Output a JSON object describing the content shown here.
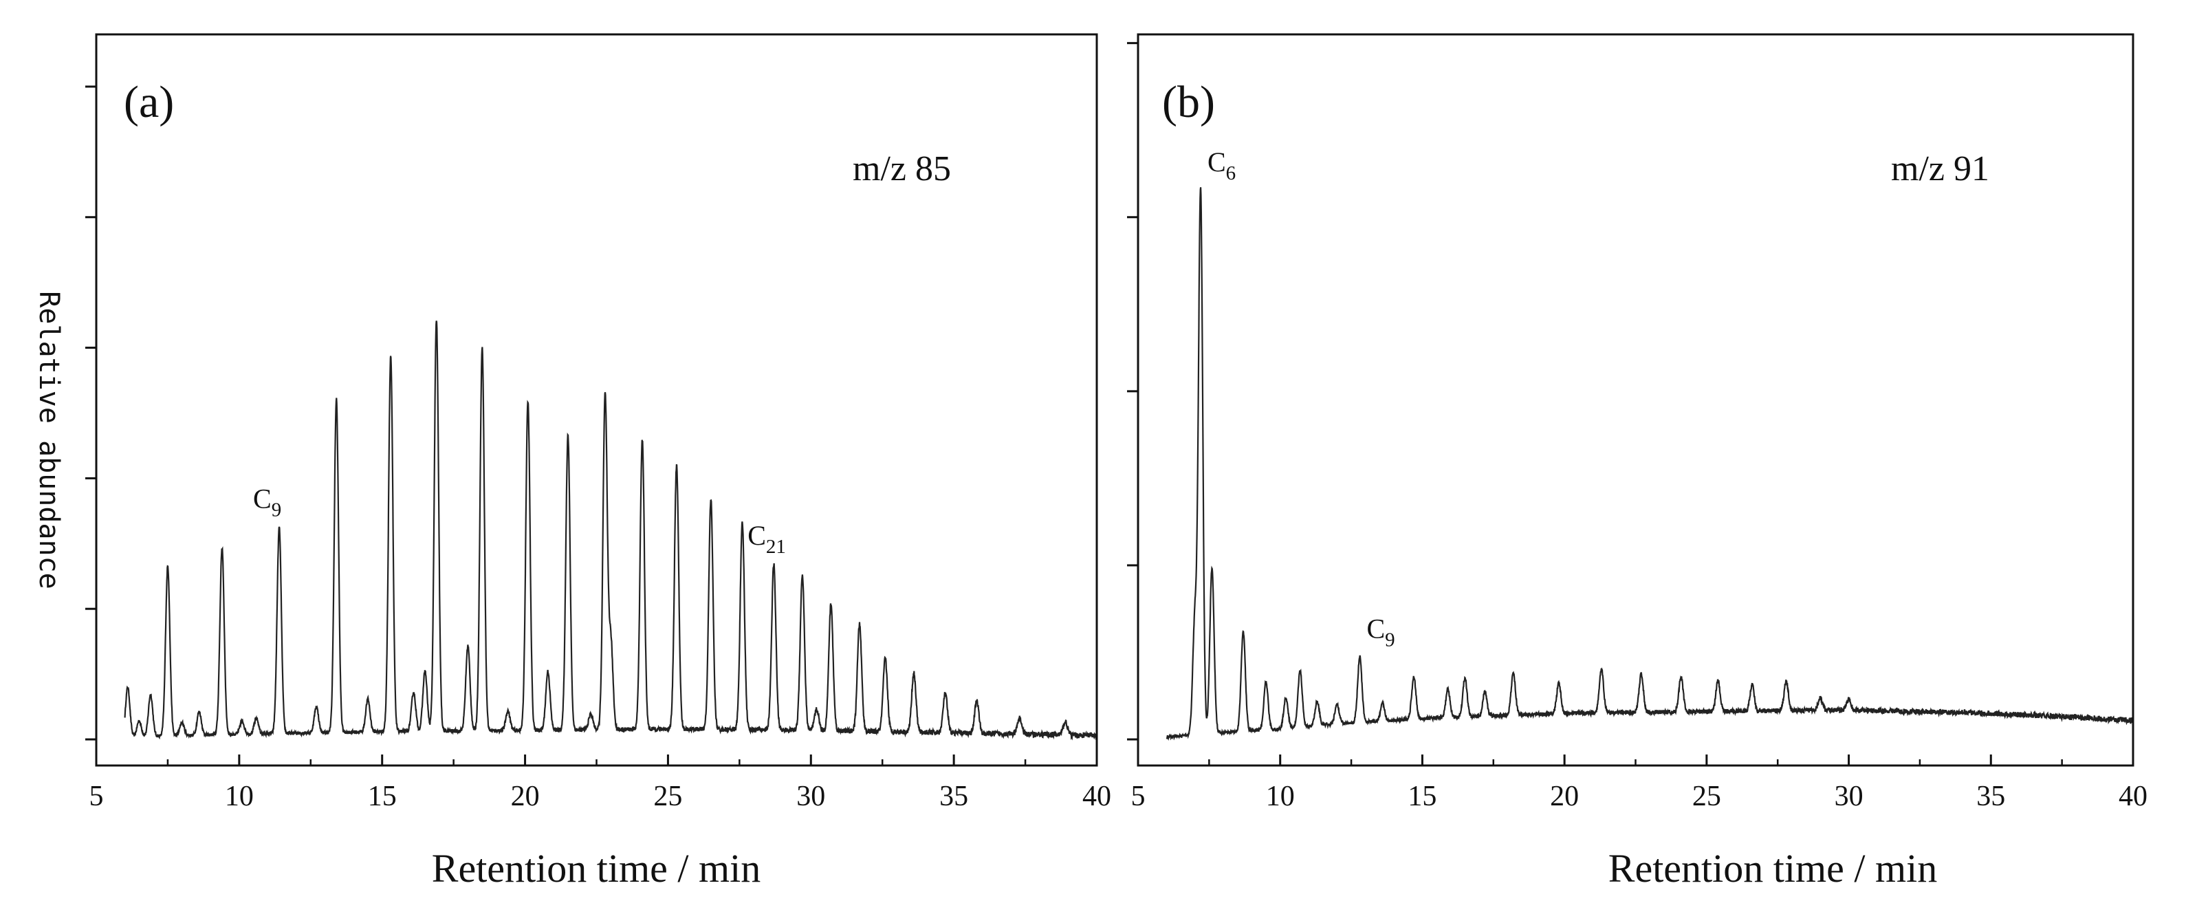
{
  "figure": {
    "y_axis_label": "Relative abundance"
  },
  "chart_data": [
    {
      "type": "line",
      "panel_label": "(a)",
      "annotation": "m/z 85",
      "xlabel": "Retention time / min",
      "ylabel": "Relative abundance",
      "xlim": [
        5,
        40
      ],
      "ylim": [
        -20,
        540
      ],
      "x_ticks": [
        5,
        10,
        15,
        20,
        25,
        30,
        35,
        40
      ],
      "y_ticks": [
        0,
        100,
        200,
        300,
        400,
        500
      ],
      "y_tick_labels_shown": false,
      "grid": false,
      "baseline": {
        "x": [
          6,
          10,
          15,
          20,
          25,
          30,
          35,
          40
        ],
        "y": [
          2,
          4,
          6,
          7,
          8,
          7,
          5,
          3
        ]
      },
      "peaks": [
        {
          "x": 6.1,
          "y": 38
        },
        {
          "x": 6.5,
          "y": 12
        },
        {
          "x": 6.9,
          "y": 32
        },
        {
          "x": 7.5,
          "y": 130
        },
        {
          "x": 8.0,
          "y": 10
        },
        {
          "x": 8.6,
          "y": 18
        },
        {
          "x": 9.4,
          "y": 143
        },
        {
          "x": 10.1,
          "y": 10
        },
        {
          "x": 10.6,
          "y": 12
        },
        {
          "x": 11.4,
          "y": 158
        },
        {
          "x": 12.7,
          "y": 20
        },
        {
          "x": 13.4,
          "y": 255
        },
        {
          "x": 14.5,
          "y": 25
        },
        {
          "x": 15.3,
          "y": 288
        },
        {
          "x": 16.1,
          "y": 30
        },
        {
          "x": 16.5,
          "y": 46
        },
        {
          "x": 16.9,
          "y": 315
        },
        {
          "x": 18.0,
          "y": 65
        },
        {
          "x": 18.5,
          "y": 293
        },
        {
          "x": 19.4,
          "y": 15
        },
        {
          "x": 20.1,
          "y": 252
        },
        {
          "x": 20.8,
          "y": 45
        },
        {
          "x": 21.5,
          "y": 226
        },
        {
          "x": 22.3,
          "y": 12
        },
        {
          "x": 22.8,
          "y": 256
        },
        {
          "x": 23.0,
          "y": 68
        },
        {
          "x": 24.1,
          "y": 222
        },
        {
          "x": 25.3,
          "y": 202
        },
        {
          "x": 26.5,
          "y": 176
        },
        {
          "x": 27.6,
          "y": 158
        },
        {
          "x": 28.7,
          "y": 127
        },
        {
          "x": 29.7,
          "y": 119
        },
        {
          "x": 30.2,
          "y": 16
        },
        {
          "x": 30.7,
          "y": 97
        },
        {
          "x": 31.7,
          "y": 82
        },
        {
          "x": 32.6,
          "y": 56
        },
        {
          "x": 33.6,
          "y": 45
        },
        {
          "x": 34.7,
          "y": 30
        },
        {
          "x": 35.8,
          "y": 25
        },
        {
          "x": 37.3,
          "y": 12
        },
        {
          "x": 38.9,
          "y": 10
        }
      ],
      "annotations": [
        {
          "text": "C",
          "subscript": "9",
          "x": 11.4,
          "y": 158
        },
        {
          "text": "C",
          "subscript": "21",
          "x": 28.7,
          "y": 127
        }
      ]
    },
    {
      "type": "line",
      "panel_label": "(b)",
      "annotation": "m/z 91",
      "xlabel": "Retention time / min",
      "ylabel": "Relative abundance",
      "xlim": [
        5,
        40
      ],
      "ylim": [
        -30,
        810
      ],
      "x_ticks": [
        5,
        10,
        15,
        20,
        25,
        30,
        35,
        40
      ],
      "y_ticks": [
        0,
        200,
        400,
        600,
        800
      ],
      "y_tick_labels_shown": false,
      "grid": false,
      "baseline": {
        "x": [
          6,
          7,
          8,
          9,
          10,
          12,
          15,
          20,
          25,
          30,
          35,
          40
        ],
        "y": [
          3,
          5,
          8,
          10,
          12,
          18,
          24,
          30,
          32,
          34,
          30,
          22
        ]
      },
      "peaks": [
        {
          "x": 7.0,
          "y": 135
        },
        {
          "x": 7.2,
          "y": 625
        },
        {
          "x": 7.6,
          "y": 190
        },
        {
          "x": 8.7,
          "y": 115
        },
        {
          "x": 9.5,
          "y": 55
        },
        {
          "x": 10.2,
          "y": 35
        },
        {
          "x": 10.7,
          "y": 65
        },
        {
          "x": 11.3,
          "y": 28
        },
        {
          "x": 12.0,
          "y": 22
        },
        {
          "x": 12.8,
          "y": 75
        },
        {
          "x": 13.6,
          "y": 20
        },
        {
          "x": 14.7,
          "y": 48
        },
        {
          "x": 15.9,
          "y": 32
        },
        {
          "x": 16.5,
          "y": 45
        },
        {
          "x": 17.2,
          "y": 28
        },
        {
          "x": 18.2,
          "y": 48
        },
        {
          "x": 19.8,
          "y": 35
        },
        {
          "x": 21.3,
          "y": 50
        },
        {
          "x": 22.7,
          "y": 44
        },
        {
          "x": 24.1,
          "y": 40
        },
        {
          "x": 25.4,
          "y": 35
        },
        {
          "x": 26.6,
          "y": 30
        },
        {
          "x": 27.8,
          "y": 34
        },
        {
          "x": 29.0,
          "y": 14
        },
        {
          "x": 30.0,
          "y": 12
        }
      ],
      "annotations": [
        {
          "text": "C",
          "subscript": "6",
          "x": 7.2,
          "y": 625
        },
        {
          "text": "C",
          "subscript": "9",
          "x": 12.8,
          "y": 75
        }
      ]
    }
  ]
}
